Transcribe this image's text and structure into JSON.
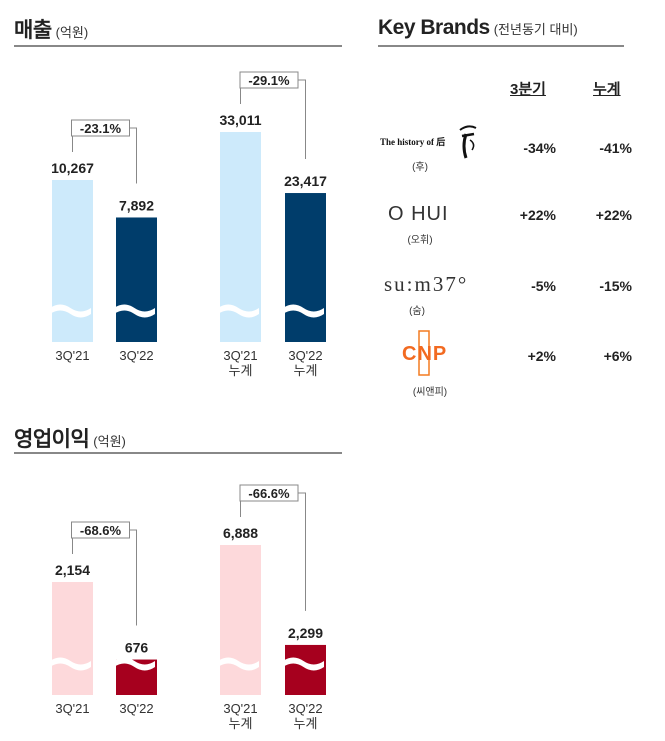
{
  "sections": {
    "sales": {
      "title": "매출",
      "unit": "(억원)"
    },
    "op_profit": {
      "title": "영업이익",
      "unit": "(억원)"
    },
    "key_brands": {
      "title": "Key Brands",
      "unit": "(전년동기 대비)"
    }
  },
  "chart_data": [
    {
      "type": "bar",
      "title": "매출",
      "unit": "(억원)",
      "categories": [
        "3Q'21",
        "3Q'22",
        "3Q'21\n누계",
        "3Q'22\n누계"
      ],
      "groups": [
        {
          "categories": [
            "3Q'21",
            "3Q'22"
          ],
          "values": [
            10267,
            7892
          ],
          "labels": [
            "10,267",
            "7,892"
          ],
          "change": "-23.1%"
        },
        {
          "categories": [
            "3Q'21\n누계",
            "3Q'22\n누계"
          ],
          "values": [
            33011,
            23417
          ],
          "labels": [
            "33,011",
            "23,417"
          ],
          "change": "-29.1%"
        }
      ],
      "colors": {
        "prior": "#cdeafb",
        "current": "#003d6b"
      },
      "axis_break": true
    },
    {
      "type": "bar",
      "title": "영업이익",
      "unit": "(억원)",
      "categories": [
        "3Q'21",
        "3Q'22",
        "3Q'21\n누계",
        "3Q'22\n누계"
      ],
      "groups": [
        {
          "categories": [
            "3Q'21",
            "3Q'22"
          ],
          "values": [
            2154,
            676
          ],
          "labels": [
            "2,154",
            "676"
          ],
          "change": "-68.6%"
        },
        {
          "categories": [
            "3Q'21\n누계",
            "3Q'22\n누계"
          ],
          "values": [
            6888,
            2299
          ],
          "labels": [
            "6,888",
            "2,299"
          ],
          "change": "-66.6%"
        }
      ],
      "colors": {
        "prior": "#fdd9db",
        "current": "#a6001e"
      },
      "axis_break": true
    },
    {
      "type": "table",
      "title": "Key Brands",
      "subtitle": "(전년동기 대비)",
      "columns": [
        "3분기",
        "누계"
      ],
      "rows": [
        {
          "brand": "The history of 后",
          "sub": "(후)",
          "values": [
            "-34%",
            "-41%"
          ]
        },
        {
          "brand": "O HUI",
          "sub": "(오휘)",
          "values": [
            "+22%",
            "+22%"
          ]
        },
        {
          "brand": "su:m37°",
          "sub": "(숨)",
          "values": [
            "-5%",
            "-15%"
          ]
        },
        {
          "brand": "CNP",
          "sub": "(씨앤피)",
          "values": [
            "+2%",
            "+6%"
          ]
        }
      ]
    }
  ]
}
